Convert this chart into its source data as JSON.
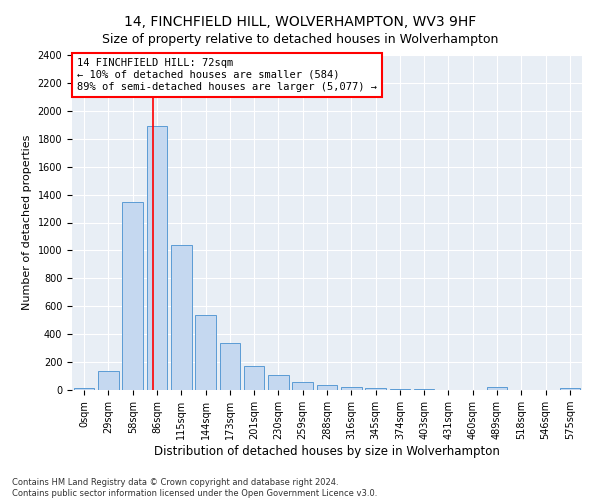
{
  "title": "14, FINCHFIELD HILL, WOLVERHAMPTON, WV3 9HF",
  "subtitle": "Size of property relative to detached houses in Wolverhampton",
  "xlabel": "Distribution of detached houses by size in Wolverhampton",
  "ylabel": "Number of detached properties",
  "bar_color": "#c5d8f0",
  "bar_edge_color": "#5b9bd5",
  "background_color": "#e8eef5",
  "categories": [
    "0sqm",
    "29sqm",
    "58sqm",
    "86sqm",
    "115sqm",
    "144sqm",
    "173sqm",
    "201sqm",
    "230sqm",
    "259sqm",
    "288sqm",
    "316sqm",
    "345sqm",
    "374sqm",
    "403sqm",
    "431sqm",
    "460sqm",
    "489sqm",
    "518sqm",
    "546sqm",
    "575sqm"
  ],
  "values": [
    15,
    135,
    1350,
    1890,
    1040,
    540,
    335,
    170,
    110,
    55,
    35,
    25,
    15,
    5,
    5,
    0,
    0,
    20,
    0,
    0,
    15
  ],
  "red_line_x": 2.85,
  "annotation_text": "14 FINCHFIELD HILL: 72sqm\n← 10% of detached houses are smaller (584)\n89% of semi-detached houses are larger (5,077) →",
  "annotation_box_color": "white",
  "annotation_box_edge_color": "red",
  "ylim": [
    0,
    2400
  ],
  "yticks": [
    0,
    200,
    400,
    600,
    800,
    1000,
    1200,
    1400,
    1600,
    1800,
    2000,
    2200,
    2400
  ],
  "footer_line1": "Contains HM Land Registry data © Crown copyright and database right 2024.",
  "footer_line2": "Contains public sector information licensed under the Open Government Licence v3.0.",
  "grid_color": "#ffffff",
  "title_fontsize": 10,
  "subtitle_fontsize": 9,
  "tick_fontsize": 7,
  "ylabel_fontsize": 8,
  "xlabel_fontsize": 8.5,
  "annotation_fontsize": 7.5,
  "footer_fontsize": 6
}
